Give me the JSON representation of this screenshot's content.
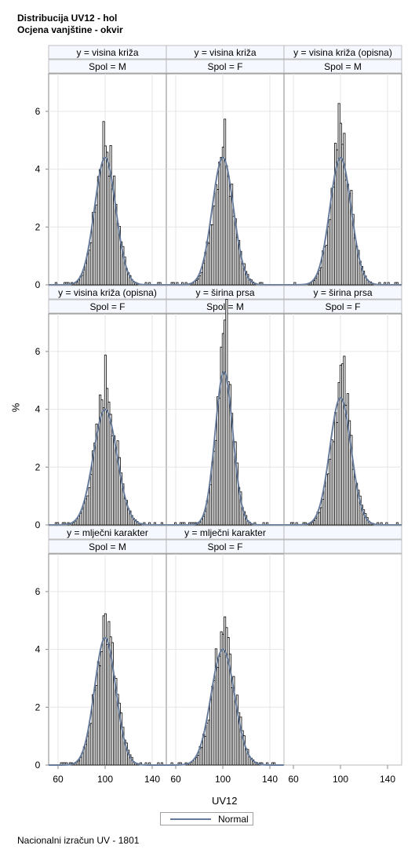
{
  "title": "Distribucija UV12 - hol",
  "subtitle": "Ocjena vanjštine - okvir",
  "footnote": "Nacionalni izračun UV - 1801",
  "legend": {
    "label": "Normal",
    "color": "#667a99"
  },
  "chart_data": {
    "type": "histogram-panel",
    "xlabel": "UV12",
    "ylabel": "%",
    "xlim": [
      52,
      152
    ],
    "ylim": [
      0,
      7.3
    ],
    "xticks": [
      60,
      100,
      140
    ],
    "yticks": [
      0,
      2,
      4,
      6
    ],
    "grid": true,
    "legend_position": "bottom",
    "normal_curve_color": "#667a99",
    "panels": [
      {
        "row_label": "y = visina križa",
        "col_label": "Spol = M",
        "peak_pct": 5.2,
        "peak_x": 98,
        "mean": 100,
        "sd": 9,
        "normal_peak": 4.4
      },
      {
        "row_label": "y = visina križa",
        "col_label": "Spol = F",
        "peak_pct": 5.2,
        "peak_x": 100,
        "mean": 100,
        "sd": 9,
        "normal_peak": 4.4
      },
      {
        "row_label": "y = visina križa (opisna)",
        "col_label": "Spol = M",
        "peak_pct": 5.5,
        "peak_x": 98,
        "mean": 100,
        "sd": 9,
        "normal_peak": 4.4
      },
      {
        "row_label": "y = visina križa (opisna)",
        "col_label": "Spol = F",
        "peak_pct": 5.1,
        "peak_x": 100,
        "mean": 100,
        "sd": 10,
        "normal_peak": 4.0
      },
      {
        "row_label": "y = širina prsa",
        "col_label": "Spol = M",
        "peak_pct": 7.2,
        "peak_x": 101,
        "mean": 101,
        "sd": 7.5,
        "normal_peak": 5.3
      },
      {
        "row_label": "y = širina prsa",
        "col_label": "Spol = F",
        "peak_pct": 5.2,
        "peak_x": 101,
        "mean": 100,
        "sd": 9,
        "normal_peak": 4.4
      },
      {
        "row_label": "y = mlječni karakter",
        "col_label": "Spol = M",
        "peak_pct": 5.0,
        "peak_x": 98,
        "mean": 100,
        "sd": 9,
        "normal_peak": 4.4
      },
      {
        "row_label": "y = mlječni karakter",
        "col_label": "Spol = F",
        "peak_pct": 4.7,
        "peak_x": 99,
        "mean": 100,
        "sd": 10,
        "normal_peak": 4.0
      }
    ]
  }
}
